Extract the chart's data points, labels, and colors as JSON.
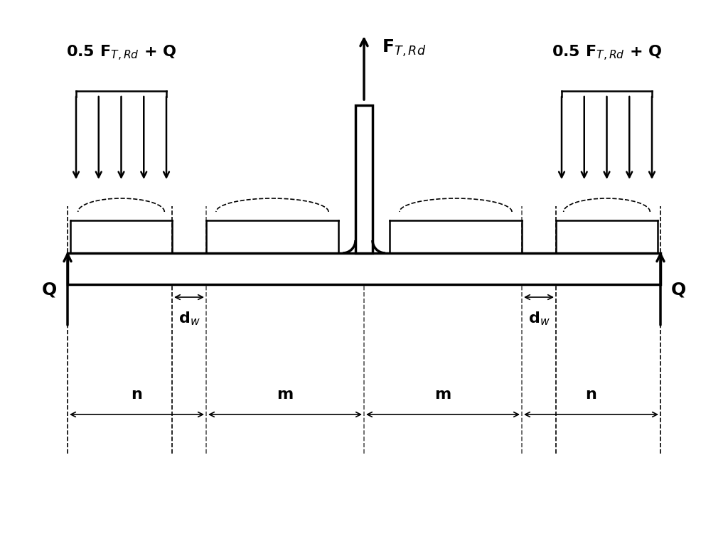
{
  "bg_color": "#ffffff",
  "line_color": "#000000",
  "dashed_color": "#555555",
  "figsize": [
    10.24,
    7.68
  ],
  "dpi": 100,
  "label_FT": "F$_{T,Rd}$",
  "label_Q_left": "Q",
  "label_Q_right": "Q",
  "label_load_left": "0.5 F$_{T,Rd}$ + Q",
  "label_load_right": "0.5 F$_{T,Rd}$ + Q",
  "label_dw_left": "d$_w$",
  "label_dw_right": "d$_w$",
  "label_n_left": "n",
  "label_m_left": "m",
  "label_m_right": "m",
  "label_n_right": "n"
}
